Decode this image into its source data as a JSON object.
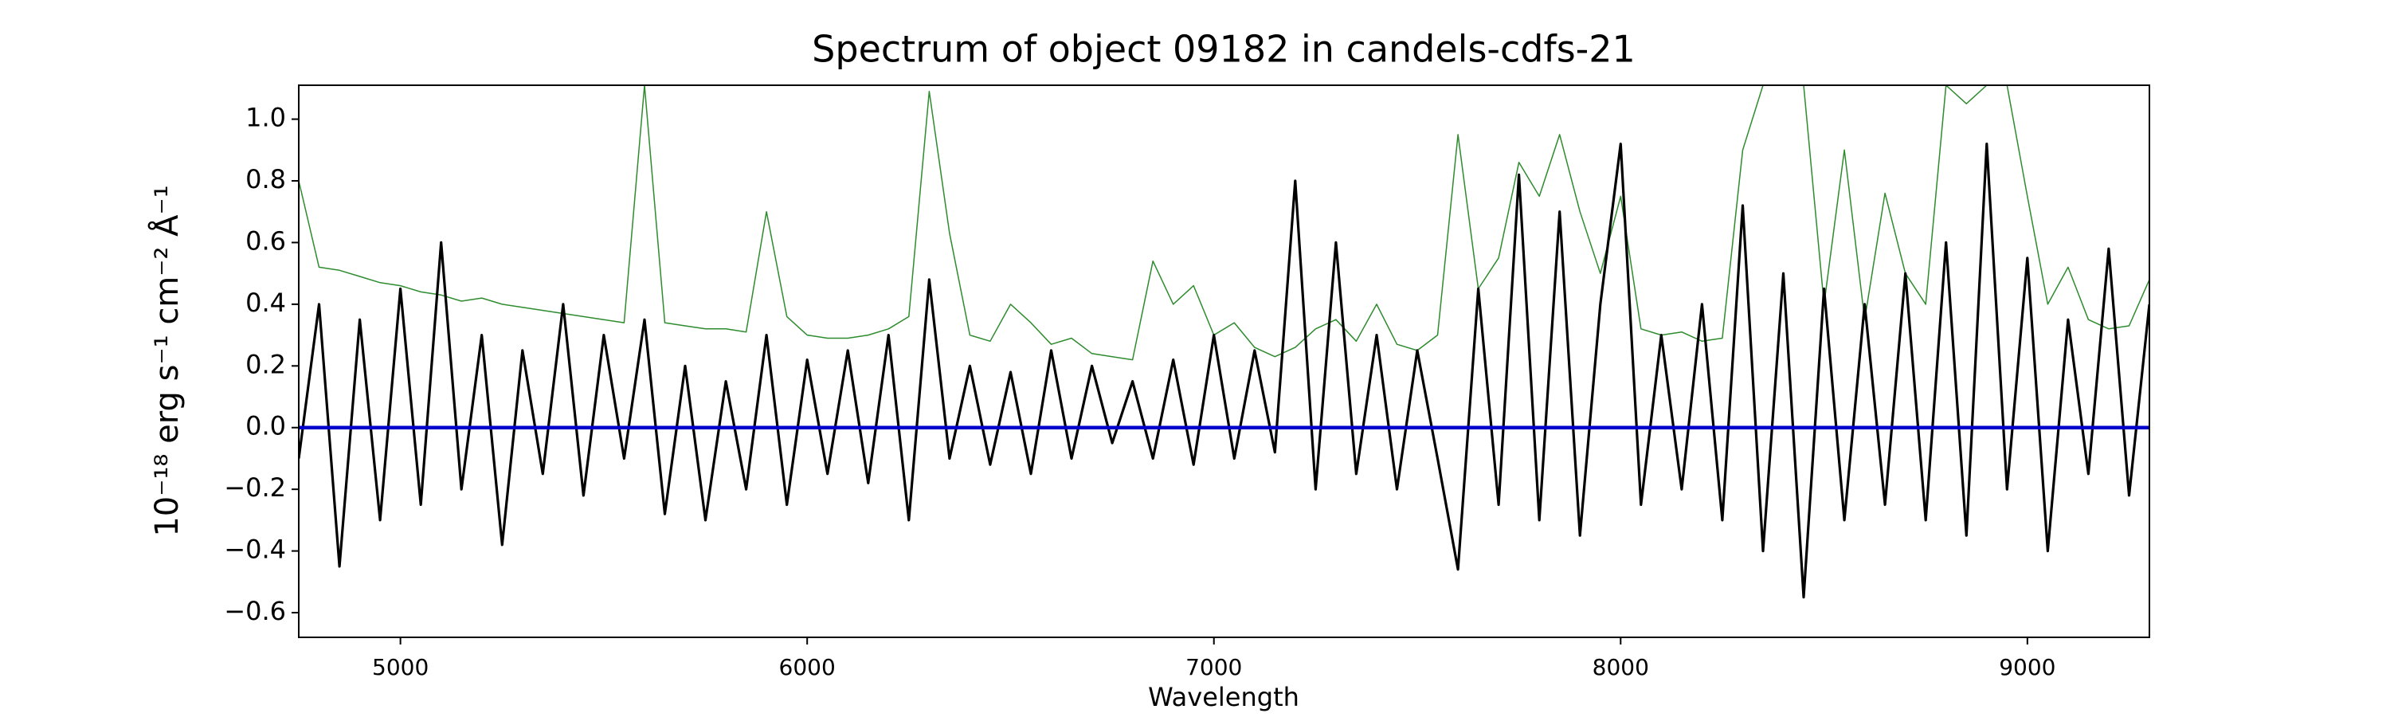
{
  "chart_data": {
    "type": "line",
    "title": "Spectrum of object 09182 in candels-cdfs-21",
    "xlabel": "Wavelength",
    "ylabel": "10⁻¹⁸ erg s⁻¹ cm⁻² Å⁻¹",
    "x": [
      4750,
      4800,
      4850,
      4900,
      4950,
      5000,
      5050,
      5100,
      5150,
      5200,
      5250,
      5300,
      5350,
      5400,
      5450,
      5500,
      5550,
      5600,
      5650,
      5700,
      5750,
      5800,
      5850,
      5900,
      5950,
      6000,
      6050,
      6100,
      6150,
      6200,
      6250,
      6300,
      6350,
      6400,
      6450,
      6500,
      6550,
      6600,
      6650,
      6700,
      6750,
      6800,
      6850,
      6900,
      6950,
      7000,
      7050,
      7100,
      7150,
      7200,
      7250,
      7300,
      7350,
      7400,
      7450,
      7500,
      7550,
      7600,
      7650,
      7700,
      7750,
      7800,
      7850,
      7900,
      7950,
      8000,
      8050,
      8100,
      8150,
      8200,
      8250,
      8300,
      8350,
      8400,
      8450,
      8500,
      8550,
      8600,
      8650,
      8700,
      8750,
      8800,
      8850,
      8900,
      8950,
      9000,
      9050,
      9100,
      9150,
      9200,
      9250,
      9300
    ],
    "series": [
      {
        "color": "#2e8b2e",
        "values": [
          0.8,
          0.52,
          0.51,
          0.49,
          0.47,
          0.46,
          0.44,
          0.43,
          0.41,
          0.42,
          0.4,
          0.39,
          0.38,
          0.37,
          0.36,
          0.35,
          0.34,
          1.11,
          0.34,
          0.33,
          0.32,
          0.32,
          0.31,
          0.7,
          0.36,
          0.3,
          0.29,
          0.29,
          0.3,
          0.32,
          0.36,
          1.09,
          0.63,
          0.3,
          0.28,
          0.4,
          0.34,
          0.27,
          0.29,
          0.24,
          0.23,
          0.22,
          0.54,
          0.4,
          0.46,
          0.3,
          0.34,
          0.26,
          0.23,
          0.26,
          0.32,
          0.35,
          0.28,
          0.4,
          0.27,
          0.25,
          0.3,
          0.95,
          0.45,
          0.55,
          0.86,
          0.75,
          0.95,
          0.7,
          0.5,
          0.75,
          0.32,
          0.3,
          0.31,
          0.28,
          0.29,
          0.9,
          1.11,
          1.11,
          1.11,
          0.4,
          0.9,
          0.35,
          0.76,
          0.5,
          0.4,
          1.11,
          1.05,
          1.11,
          1.11,
          0.75,
          0.4,
          0.52,
          0.35,
          0.32,
          0.33,
          0.48
        ]
      },
      {
        "color": "#000000",
        "values": [
          -0.1,
          0.4,
          -0.45,
          0.35,
          -0.3,
          0.45,
          -0.25,
          0.6,
          -0.2,
          0.3,
          -0.38,
          0.25,
          -0.15,
          0.4,
          -0.22,
          0.3,
          -0.1,
          0.35,
          -0.28,
          0.2,
          -0.3,
          0.15,
          -0.2,
          0.3,
          -0.25,
          0.22,
          -0.15,
          0.25,
          -0.18,
          0.3,
          -0.3,
          0.48,
          -0.1,
          0.2,
          -0.12,
          0.18,
          -0.15,
          0.25,
          -0.1,
          0.2,
          -0.05,
          0.15,
          -0.1,
          0.22,
          -0.12,
          0.3,
          -0.1,
          0.25,
          -0.08,
          0.8,
          -0.2,
          0.6,
          -0.15,
          0.3,
          -0.2,
          0.25,
          -0.1,
          -0.46,
          0.45,
          -0.25,
          0.82,
          -0.3,
          0.7,
          -0.35,
          0.4,
          0.92,
          -0.25,
          0.3,
          -0.2,
          0.4,
          -0.3,
          0.72,
          -0.4,
          0.5,
          -0.55,
          0.45,
          -0.3,
          0.4,
          -0.25,
          0.5,
          -0.3,
          0.6,
          -0.35,
          0.92,
          -0.2,
          0.55,
          -0.4,
          0.35,
          -0.15,
          0.58,
          -0.22,
          0.4
        ]
      },
      {
        "color": "#0000cc",
        "values": [
          0,
          0,
          0,
          0,
          0,
          0,
          0,
          0,
          0,
          0,
          0,
          0,
          0,
          0,
          0,
          0,
          0,
          0,
          0,
          0,
          0,
          0,
          0,
          0,
          0,
          0,
          0,
          0,
          0,
          0,
          0,
          0,
          0,
          0,
          0,
          0,
          0,
          0,
          0,
          0,
          0,
          0,
          0,
          0,
          0,
          0,
          0,
          0,
          0,
          0,
          0,
          0,
          0,
          0,
          0,
          0,
          0,
          0,
          0,
          0,
          0,
          0,
          0,
          0,
          0,
          0,
          0,
          0,
          0,
          0,
          0,
          0,
          0,
          0,
          0,
          0,
          0,
          0,
          0,
          0,
          0,
          0,
          0,
          0,
          0,
          0,
          0,
          0,
          0,
          0,
          0,
          0
        ]
      }
    ],
    "xlim": [
      4750,
      9300
    ],
    "xticks": [
      5000,
      6000,
      7000,
      8000,
      9000
    ],
    "ylim": [
      -0.68,
      1.11
    ],
    "yticks": [
      {
        "value": -0.6,
        "label": "−0.6"
      },
      {
        "value": -0.4,
        "label": "−0.4"
      },
      {
        "value": -0.2,
        "label": "−0.2"
      },
      {
        "value": 0.0,
        "label": "0.0"
      },
      0.2,
      0.4,
      0.6,
      0.8,
      {
        "value": 1.0,
        "label": "1.0"
      }
    ]
  }
}
